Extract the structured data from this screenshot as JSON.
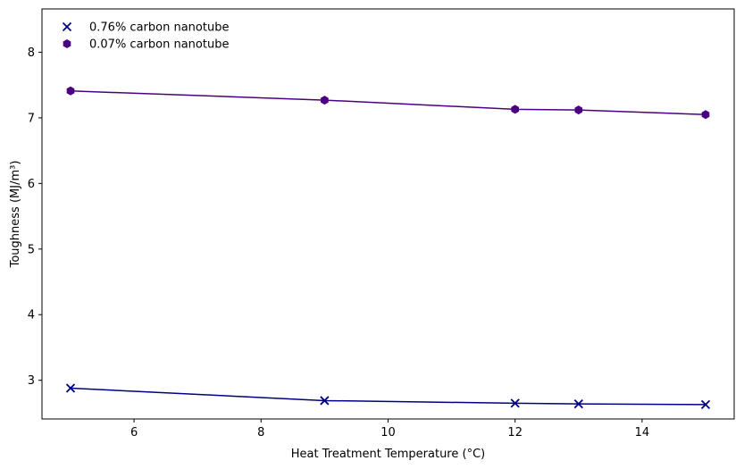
{
  "chart_data": {
    "type": "line",
    "title": "",
    "xlabel": "Heat Treatment Temperature (°C)",
    "ylabel": "Toughness (MJ/m³)",
    "xlim": [
      4.55,
      15.45
    ],
    "ylim": [
      2.41,
      8.66
    ],
    "xticks": [
      6,
      8,
      10,
      12,
      14
    ],
    "yticks": [
      3,
      4,
      5,
      6,
      7,
      8
    ],
    "grid": false,
    "legend_position": "top-left",
    "x": [
      5,
      9,
      12,
      13,
      15
    ],
    "series": [
      {
        "name": "0.76% carbon nanotube",
        "values": [
          2.88,
          2.69,
          2.65,
          2.64,
          2.63
        ],
        "color": "#000080",
        "marker": "x"
      },
      {
        "name": "0.07% carbon nanotube",
        "values": [
          7.41,
          7.27,
          7.13,
          7.12,
          7.05
        ],
        "color": "#4b0082",
        "marker": "hexagon"
      }
    ]
  }
}
